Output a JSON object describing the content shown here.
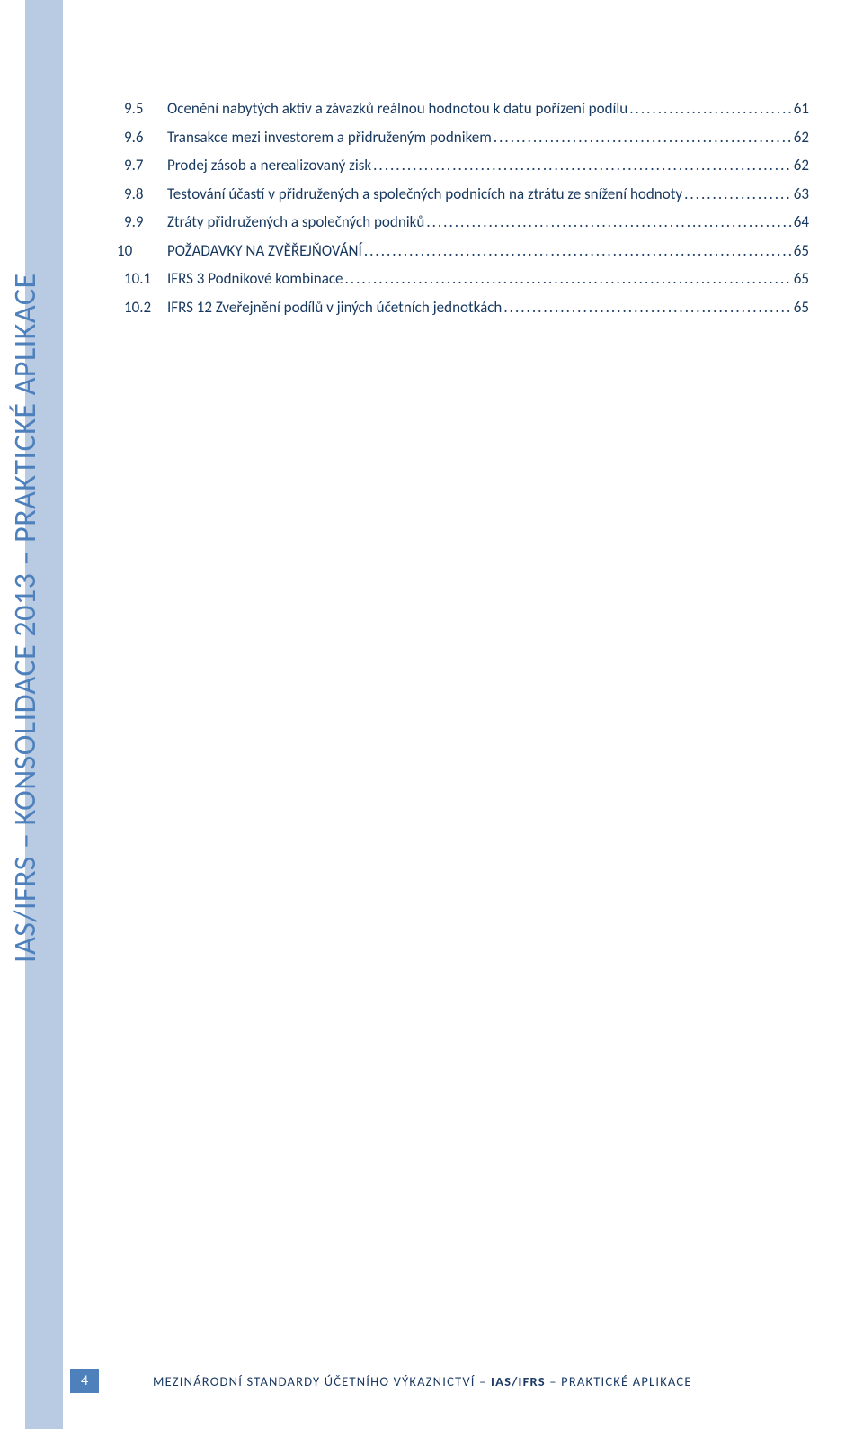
{
  "colors": {
    "sidebar_stripe": "#b8cbe2",
    "vertical_text": "#4e80bc",
    "body_text": "#17385f",
    "page_badge_bg": "#4e80bc",
    "page_badge_text": "#ffffff",
    "background": "#ffffff"
  },
  "typography": {
    "body_font": "Calibri",
    "toc_fontsize_pt": 12,
    "vertical_fontsize_pt": 25,
    "footer_fontsize_pt": 11
  },
  "vertical_label": "IAS/IFRS – KONSOLIDACE 2013 – PRAKTICKÉ APLIKACE",
  "toc": {
    "items": [
      {
        "num": "9.5",
        "title": "Ocenění nabytých aktiv a závazků reálnou hodnotou k datu pořízení podílu",
        "page": "61",
        "chapter": false
      },
      {
        "num": "9.6",
        "title": "Transakce mezi investorem a přidruženým podnikem",
        "page": "62",
        "chapter": false
      },
      {
        "num": "9.7",
        "title": "Prodej zásob a nerealizovaný zisk",
        "page": "62",
        "chapter": false
      },
      {
        "num": "9.8",
        "title": "Testování účastí v přidružených a společných podnicích na ztrátu  ze snížení hodnoty",
        "page": "63",
        "chapter": false
      },
      {
        "num": "9.9",
        "title": "Ztráty přidružených a společných podniků",
        "page": "64",
        "chapter": false
      },
      {
        "num": "10",
        "title": "POŽADAVKY NA ZVĚŘEJŇOVÁNÍ",
        "page": "65",
        "chapter": true
      },
      {
        "num": "10.1",
        "title": "IFRS 3 Podnikové kombinace",
        "page": "65",
        "chapter": false
      },
      {
        "num": "10.2",
        "title": "IFRS 12 Zveřejnění podílů v jiných účetních jednotkách",
        "page": "65",
        "chapter": false
      }
    ]
  },
  "footer": {
    "page_number": "4",
    "text_plain": "MEZINÁRODNÍ STANDARDY ÚČETNÍHO VÝKAZNICTVÍ – ",
    "text_bold1": "IAS/IFRS",
    "text_sep": " – ",
    "text_plain2": "PRAKTICKÉ APLIKACE"
  }
}
